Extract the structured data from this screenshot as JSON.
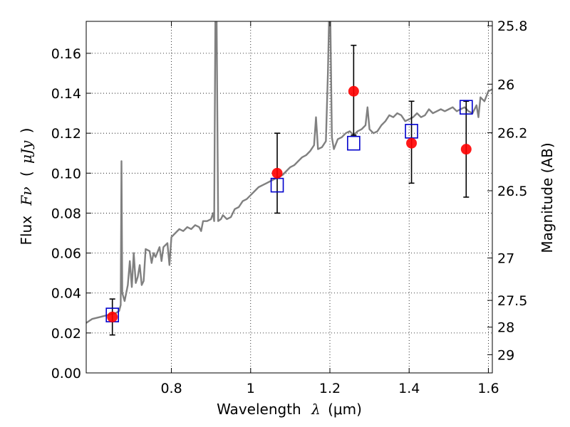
{
  "chart_data": {
    "type": "scatter",
    "title": "",
    "xlabel": "Wavelength  λ (μm)",
    "ylabel": "Flux  Fν  ( μJy )",
    "ylabel_parts": {
      "prefix": "Flux",
      "symbol": "Fν",
      "open": "(",
      "unit": "μJy",
      "close": ")"
    },
    "xlabel_parts": {
      "prefix": "Wavelength",
      "symbol": "λ",
      "unit": "(μm)"
    },
    "y2label": "Magnitude (AB)",
    "xlim": [
      0.585,
      1.61
    ],
    "ylim": [
      0.0,
      0.176
    ],
    "grid": true,
    "x_ticks": [
      0.8,
      1.0,
      1.2,
      1.4,
      1.6
    ],
    "x_tick_labels": [
      "0.8",
      "1",
      "1.2",
      "1.4",
      "1.6"
    ],
    "y_ticks": [
      0.0,
      0.02,
      0.04,
      0.06,
      0.08,
      0.1,
      0.12,
      0.14,
      0.16
    ],
    "y_tick_labels": [
      "0.00",
      "0.02",
      "0.04",
      "0.06",
      "0.08",
      "0.10",
      "0.12",
      "0.14",
      "0.16"
    ],
    "y2_ticks": [
      25.8,
      26,
      26.2,
      26.5,
      27,
      27.5,
      28,
      29
    ],
    "y2_tick_labels": [
      "25.8",
      "26",
      "26.2",
      "26.5",
      "27",
      "27.5",
      "28",
      "29"
    ],
    "series": [
      {
        "type": "line",
        "color": "#808080",
        "points": [
          [
            0.585,
            0.025
          ],
          [
            0.6,
            0.027
          ],
          [
            0.62,
            0.028
          ],
          [
            0.64,
            0.029
          ],
          [
            0.66,
            0.03
          ],
          [
            0.668,
            0.031
          ],
          [
            0.672,
            0.034
          ],
          [
            0.674,
            0.106
          ],
          [
            0.676,
            0.04
          ],
          [
            0.682,
            0.036
          ],
          [
            0.69,
            0.044
          ],
          [
            0.695,
            0.056
          ],
          [
            0.7,
            0.043
          ],
          [
            0.705,
            0.06
          ],
          [
            0.71,
            0.045
          ],
          [
            0.715,
            0.048
          ],
          [
            0.72,
            0.054
          ],
          [
            0.725,
            0.044
          ],
          [
            0.73,
            0.046
          ],
          [
            0.735,
            0.062
          ],
          [
            0.745,
            0.061
          ],
          [
            0.75,
            0.055
          ],
          [
            0.755,
            0.06
          ],
          [
            0.76,
            0.058
          ],
          [
            0.77,
            0.063
          ],
          [
            0.775,
            0.056
          ],
          [
            0.78,
            0.063
          ],
          [
            0.79,
            0.065
          ],
          [
            0.795,
            0.054
          ],
          [
            0.8,
            0.068
          ],
          [
            0.81,
            0.07
          ],
          [
            0.82,
            0.072
          ],
          [
            0.83,
            0.071
          ],
          [
            0.84,
            0.073
          ],
          [
            0.85,
            0.072
          ],
          [
            0.86,
            0.074
          ],
          [
            0.87,
            0.073
          ],
          [
            0.875,
            0.071
          ],
          [
            0.88,
            0.076
          ],
          [
            0.89,
            0.076
          ],
          [
            0.9,
            0.077
          ],
          [
            0.905,
            0.08
          ],
          [
            0.908,
            0.076
          ],
          [
            0.911,
            0.178
          ],
          [
            0.914,
            0.178
          ],
          [
            0.918,
            0.076
          ],
          [
            0.925,
            0.077
          ],
          [
            0.93,
            0.079
          ],
          [
            0.935,
            0.078
          ],
          [
            0.94,
            0.077
          ],
          [
            0.95,
            0.078
          ],
          [
            0.96,
            0.082
          ],
          [
            0.97,
            0.083
          ],
          [
            0.98,
            0.086
          ],
          [
            0.99,
            0.087
          ],
          [
            1.0,
            0.089
          ],
          [
            1.01,
            0.091
          ],
          [
            1.02,
            0.093
          ],
          [
            1.03,
            0.094
          ],
          [
            1.04,
            0.095
          ],
          [
            1.05,
            0.096
          ],
          [
            1.06,
            0.097
          ],
          [
            1.07,
            0.098
          ],
          [
            1.08,
            0.099
          ],
          [
            1.09,
            0.101
          ],
          [
            1.1,
            0.103
          ],
          [
            1.11,
            0.104
          ],
          [
            1.12,
            0.106
          ],
          [
            1.13,
            0.108
          ],
          [
            1.14,
            0.109
          ],
          [
            1.15,
            0.111
          ],
          [
            1.16,
            0.114
          ],
          [
            1.165,
            0.128
          ],
          [
            1.17,
            0.112
          ],
          [
            1.18,
            0.113
          ],
          [
            1.19,
            0.116
          ],
          [
            1.195,
            0.15
          ],
          [
            1.198,
            0.178
          ],
          [
            1.201,
            0.178
          ],
          [
            1.205,
            0.118
          ],
          [
            1.21,
            0.112
          ],
          [
            1.22,
            0.117
          ],
          [
            1.23,
            0.118
          ],
          [
            1.24,
            0.12
          ],
          [
            1.25,
            0.121
          ],
          [
            1.26,
            0.119
          ],
          [
            1.27,
            0.121
          ],
          [
            1.28,
            0.122
          ],
          [
            1.29,
            0.124
          ],
          [
            1.295,
            0.133
          ],
          [
            1.3,
            0.122
          ],
          [
            1.31,
            0.12
          ],
          [
            1.32,
            0.121
          ],
          [
            1.33,
            0.124
          ],
          [
            1.34,
            0.126
          ],
          [
            1.35,
            0.129
          ],
          [
            1.36,
            0.128
          ],
          [
            1.37,
            0.13
          ],
          [
            1.38,
            0.129
          ],
          [
            1.39,
            0.126
          ],
          [
            1.4,
            0.127
          ],
          [
            1.41,
            0.128
          ],
          [
            1.42,
            0.13
          ],
          [
            1.43,
            0.128
          ],
          [
            1.44,
            0.129
          ],
          [
            1.45,
            0.132
          ],
          [
            1.46,
            0.13
          ],
          [
            1.47,
            0.131
          ],
          [
            1.48,
            0.132
          ],
          [
            1.49,
            0.131
          ],
          [
            1.5,
            0.132
          ],
          [
            1.51,
            0.133
          ],
          [
            1.52,
            0.131
          ],
          [
            1.53,
            0.132
          ],
          [
            1.54,
            0.133
          ],
          [
            1.55,
            0.131
          ],
          [
            1.56,
            0.13
          ],
          [
            1.57,
            0.134
          ],
          [
            1.575,
            0.128
          ],
          [
            1.58,
            0.138
          ],
          [
            1.59,
            0.136
          ],
          [
            1.6,
            0.141
          ],
          [
            1.61,
            0.142
          ]
        ]
      },
      {
        "type": "errorbar",
        "marker": "circle",
        "color": "#ff0000",
        "points": [
          {
            "x": 0.651,
            "y": 0.028,
            "ylow": 0.019,
            "yhigh": 0.037
          },
          {
            "x": 1.067,
            "y": 0.1,
            "ylow": 0.08,
            "yhigh": 0.12
          },
          {
            "x": 1.26,
            "y": 0.141,
            "ylow": 0.119,
            "yhigh": 0.164
          },
          {
            "x": 1.406,
            "y": 0.115,
            "ylow": 0.095,
            "yhigh": 0.136
          },
          {
            "x": 1.544,
            "y": 0.112,
            "ylow": 0.088,
            "yhigh": 0.136
          }
        ]
      },
      {
        "type": "scatter",
        "marker": "square-open",
        "color": "#0000cc",
        "points": [
          {
            "x": 0.651,
            "y": 0.029
          },
          {
            "x": 1.067,
            "y": 0.094
          },
          {
            "x": 1.26,
            "y": 0.115
          },
          {
            "x": 1.406,
            "y": 0.121
          },
          {
            "x": 1.544,
            "y": 0.133
          }
        ]
      }
    ]
  }
}
